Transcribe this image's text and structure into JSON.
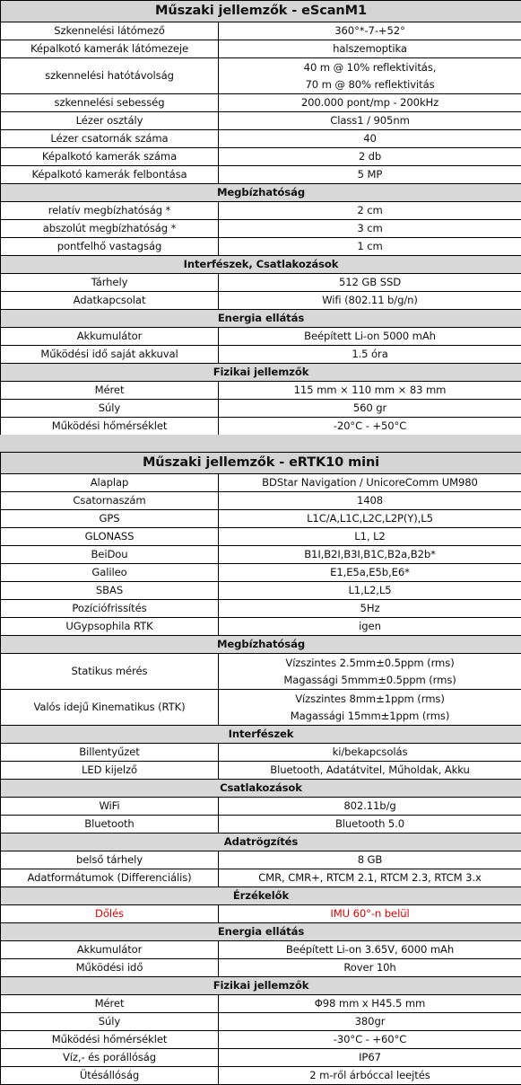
{
  "table1": {
    "title": "Műszaki jellemzők - eScanM1",
    "rows": [
      {
        "type": "row",
        "label": "Szkennelési látómező",
        "value": "360°*-7-+52°"
      },
      {
        "type": "row",
        "label": "Képalkotó kamerák látómezeje",
        "value": "halszemoptika"
      },
      {
        "type": "multi",
        "label": "szkennelési hatótávolság",
        "values": [
          "40 m @ 10% reflektivitás,",
          "70 m @ 80% reflektivitás"
        ]
      },
      {
        "type": "row",
        "label": "szkennelési sebesség",
        "value": "200.000 pont/mp   -   200kHz"
      },
      {
        "type": "row",
        "label": "Lézer osztály",
        "value": "Class1 / 905nm"
      },
      {
        "type": "row",
        "label": "Lézer csatornák száma",
        "value": "40"
      },
      {
        "type": "row",
        "label": "Képalkotó kamerák száma",
        "value": "2 db"
      },
      {
        "type": "row",
        "label": "Képalkotó kamerák felbontása",
        "value": "5 MP"
      },
      {
        "type": "section",
        "label": "Megbízhatóság"
      },
      {
        "type": "row",
        "label": "relatív megbízhatóság *",
        "value": "2 cm"
      },
      {
        "type": "row",
        "label": "abszolút megbízhatóság *",
        "value": "3 cm"
      },
      {
        "type": "row",
        "label": "pontfelhő vastagság",
        "value": "1 cm"
      },
      {
        "type": "section",
        "label": "Interfészek, Csatlakozások"
      },
      {
        "type": "row",
        "label": "Tárhely",
        "value": "512 GB SSD"
      },
      {
        "type": "row",
        "label": "Adatkapcsolat",
        "value": "Wifi (802.11 b/g/n)"
      },
      {
        "type": "section",
        "label": "Energia ellátás"
      },
      {
        "type": "row",
        "label": "Akkumulátor",
        "value": "Beépített Li-on  5000 mAh"
      },
      {
        "type": "row",
        "label": "Működési idő saját akkuval",
        "value": "1.5 óra"
      },
      {
        "type": "section",
        "label": "Fizikai jellemzők"
      },
      {
        "type": "row",
        "label": "Méret",
        "value": "115 mm × 110 mm × 83 mm"
      },
      {
        "type": "row",
        "label": "Súly",
        "value": "560 gr"
      },
      {
        "type": "row",
        "label": "Működési hőmérséklet",
        "value": "-20°C - +50°C"
      }
    ]
  },
  "table2": {
    "title": "Műszaki jellemzők - eRTK10 mini",
    "rows": [
      {
        "type": "row",
        "label": "Alaplap",
        "value": "BDStar Navigation / UnicoreComm UM980"
      },
      {
        "type": "row",
        "label": "Csatornaszám",
        "value": "1408"
      },
      {
        "type": "row",
        "label": "GPS",
        "value": "L1C/A,L1C,L2C,L2P(Y),L5"
      },
      {
        "type": "row",
        "label": "GLONASS",
        "value": "L1, L2"
      },
      {
        "type": "row",
        "label": "BeiDou",
        "value": "B1I,B2I,B3I,B1C,B2a,B2b*"
      },
      {
        "type": "row",
        "label": "Galileo",
        "value": "E1,E5a,E5b,E6*"
      },
      {
        "type": "row",
        "label": "SBAS",
        "value": "L1,L2,L5"
      },
      {
        "type": "row",
        "label": "Pozíciófrissítés",
        "value": "5Hz"
      },
      {
        "type": "row",
        "label": "UGypsophila RTK",
        "value": "igen"
      },
      {
        "type": "section",
        "label": "Megbízhatóság"
      },
      {
        "type": "multi",
        "label": "Statikus mérés",
        "values": [
          "Vízszintes 2.5mm±0.5ppm (rms)",
          "Magassági 5mmm±0.5ppm (rms)"
        ]
      },
      {
        "type": "multi",
        "label": "Valós idejű Kinematikus (RTK)",
        "values": [
          "Vízszintes 8mm±1ppm (rms)",
          "Magassági 15mm±1ppm (rms)"
        ]
      },
      {
        "type": "section",
        "label": "Interfészek"
      },
      {
        "type": "row",
        "label": "Billentyűzet",
        "value": "ki/bekapcsolás"
      },
      {
        "type": "row",
        "label": "LED kijelző",
        "value": "Bluetooth, Adatátvitel, Műholdak, Akku"
      },
      {
        "type": "section",
        "label": "Csatlakozások"
      },
      {
        "type": "row",
        "label": "WiFi",
        "value": "802.11b/g"
      },
      {
        "type": "row",
        "label": "Bluetooth",
        "value": "Bluetooth 5.0"
      },
      {
        "type": "section",
        "label": "Adatrögzítés"
      },
      {
        "type": "row",
        "label": "belső tárhely",
        "value": "8 GB"
      },
      {
        "type": "row",
        "label": "Adatformátumok (Differenciális)",
        "value": "CMR, CMR+, RTCM 2.1, RTCM 2.3, RTCM 3.x"
      },
      {
        "type": "section",
        "label": "Érzékelők"
      },
      {
        "type": "row",
        "label": "Dőlés",
        "value": "IMU 60°-n belül",
        "highlight": true
      },
      {
        "type": "section",
        "label": "Energia ellátás"
      },
      {
        "type": "row",
        "label": "Akkumulátor",
        "value": "Beépített Li-on 3.65V, 6000 mAh"
      },
      {
        "type": "row",
        "label": "Működési idő",
        "value": "Rover 10h"
      },
      {
        "type": "section",
        "label": "Fizikai jellemzők"
      },
      {
        "type": "row",
        "label": "Méret",
        "value": "Φ98 mm x H45.5 mm"
      },
      {
        "type": "row",
        "label": "Súly",
        "value": "380gr"
      },
      {
        "type": "row",
        "label": "Működési hőmérséklet",
        "value": "-30°C - +60°C"
      },
      {
        "type": "row",
        "label": "Víz,- és porállóság",
        "value": "IP67"
      },
      {
        "type": "row",
        "label": "Ütésállóság",
        "value": "2 m-ről árbóccal leejtés"
      }
    ]
  },
  "colors": {
    "highlight": "#e00000",
    "header_bg": "#d4d4d4",
    "section_bg": "#d8d8d8"
  }
}
